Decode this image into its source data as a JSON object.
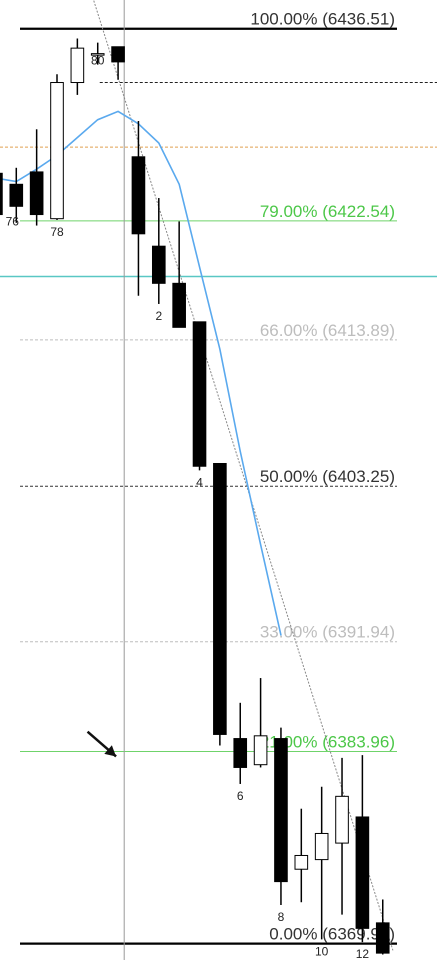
{
  "chart_data": {
    "type": "candlestick",
    "title": "",
    "xlabel": "",
    "ylabel": "",
    "ylim": [
      6368.8,
      6438.6
    ],
    "xlim": [
      -0.8,
      18.7
    ],
    "bar_labels": [
      {
        "x": 2,
        "text": "78"
      },
      {
        "x": 4,
        "text": "80"
      },
      {
        "x": 7,
        "text": "2"
      },
      {
        "x": 9,
        "text": "4"
      },
      {
        "x": 11,
        "text": "6"
      },
      {
        "x": 13,
        "text": "8"
      },
      {
        "x": 15,
        "text": "10"
      },
      {
        "x": 17,
        "text": "12"
      },
      {
        "x": 0,
        "text": "76"
      }
    ],
    "candles": [
      {
        "x": -1,
        "o": 6426.0,
        "h": 6427.4,
        "l": 6422.6,
        "c": 6423.0
      },
      {
        "x": 0,
        "o": 6425.2,
        "h": 6426.4,
        "l": 6422.4,
        "c": 6423.6
      },
      {
        "x": 1,
        "o": 6426.1,
        "h": 6429.2,
        "l": 6422.2,
        "c": 6423.0
      },
      {
        "x": 2,
        "o": 6422.7,
        "h": 6433.2,
        "l": 6422.6,
        "c": 6432.6
      },
      {
        "x": 3,
        "o": 6432.6,
        "h": 6435.8,
        "l": 6431.7,
        "c": 6435.1
      },
      {
        "x": 4,
        "o": 6434.6,
        "h": 6435.5,
        "l": 6433.9,
        "c": 6434.7
      },
      {
        "x": 5,
        "o": 6435.2,
        "h": 6435.2,
        "l": 6432.8,
        "c": 6434.1
      },
      {
        "x": 6,
        "o": 6427.2,
        "h": 6429.8,
        "l": 6417.1,
        "c": 6421.6
      },
      {
        "x": 7,
        "o": 6420.7,
        "h": 6424.2,
        "l": 6416.5,
        "c": 6418.0
      },
      {
        "x": 8,
        "o": 6418.0,
        "h": 6422.5,
        "l": 6414.8,
        "c": 6414.8
      },
      {
        "x": 9,
        "o": 6415.2,
        "h": 6415.2,
        "l": 6404.4,
        "c": 6404.7
      },
      {
        "x": 10,
        "o": 6404.9,
        "h": 6404.9,
        "l": 6384.4,
        "c": 6385.2
      },
      {
        "x": 11,
        "o": 6384.9,
        "h": 6387.5,
        "l": 6381.6,
        "c": 6382.8
      },
      {
        "x": 12,
        "o": 6383.0,
        "h": 6389.3,
        "l": 6382.8,
        "c": 6385.1
      },
      {
        "x": 13,
        "o": 6384.9,
        "h": 6385.7,
        "l": 6372.8,
        "c": 6374.5
      },
      {
        "x": 14,
        "o": 6375.4,
        "h": 6379.8,
        "l": 6373.0,
        "c": 6376.4
      },
      {
        "x": 15,
        "o": 6376.1,
        "h": 6381.4,
        "l": 6370.3,
        "c": 6378.0
      },
      {
        "x": 16,
        "o": 6377.3,
        "h": 6383.5,
        "l": 6372.1,
        "c": 6380.7
      },
      {
        "x": 17,
        "o": 6379.2,
        "h": 6383.7,
        "l": 6370.1,
        "c": 6371.1
      },
      {
        "x": 18,
        "o": 6371.5,
        "h": 6373.2,
        "l": 6369.2,
        "c": 6369.3
      }
    ],
    "moving_average": {
      "color": "#5aa9ee",
      "points": [
        [
          -0.8,
          6425.6
        ],
        [
          0,
          6425.4
        ],
        [
          1,
          6426.3
        ],
        [
          2,
          6427.3
        ],
        [
          3,
          6428.6
        ],
        [
          4,
          6429.9
        ],
        [
          5,
          6430.5
        ],
        [
          6,
          6429.6
        ],
        [
          7,
          6428.2
        ],
        [
          8,
          6425.2
        ],
        [
          9,
          6419.2
        ],
        [
          10,
          6413.2
        ],
        [
          11,
          6405.8
        ],
        [
          12,
          6399.0
        ],
        [
          13,
          6392.4
        ],
        [
          14,
          6387.1
        ],
        [
          15,
          6382.4
        ],
        [
          16,
          6378.2
        ],
        [
          17,
          6374.2
        ],
        [
          18,
          6370.6
        ]
      ]
    },
    "fib_levels": [
      {
        "pct": "100.00%",
        "price": "6436.51",
        "value": 6436.51,
        "color": "#000000",
        "label_color": "#333333",
        "line_style": "solid"
      },
      {
        "pct": "79.00%",
        "price": "6422.54",
        "value": 6422.54,
        "color": "#6fd36a",
        "label_color": "#4cc748",
        "line_style": "solid"
      },
      {
        "pct": "66.00%",
        "price": "6413.89",
        "value": 6413.89,
        "color": "#bdbdbd",
        "label_color": "#bdbdbd",
        "line_style": "dashed"
      },
      {
        "pct": "50.00%",
        "price": "6403.25",
        "value": 6403.25,
        "color": "#333333",
        "label_color": "#333333",
        "line_style": "dashed"
      },
      {
        "pct": "33.00%",
        "price": "6391.94",
        "value": 6391.94,
        "color": "#bdbdbd",
        "label_color": "#bdbdbd",
        "line_style": "dashed"
      },
      {
        "pct": "21.00%",
        "price": "6383.96",
        "value": 6383.96,
        "color": "#6fd36a",
        "label_color": "#4cc748",
        "line_style": "solid"
      },
      {
        "pct": "0.00%",
        "price": "6369.99",
        "value": 6369.99,
        "color": "#000000",
        "label_color": "#333333",
        "line_style": "solid"
      }
    ],
    "horizontal_lines": [
      {
        "value": 6432.6,
        "color": "#222222",
        "style": "dashed"
      },
      {
        "value": 6427.9,
        "color": "#e0a050",
        "style": "dashed"
      },
      {
        "value": 6418.5,
        "color": "#59c7c4",
        "style": "solid"
      }
    ],
    "vertical_line": {
      "x": 5.3,
      "color": "#999999"
    },
    "trendline": {
      "from": [
        5.2,
        6432.0
      ],
      "to": [
        18.5,
        6369.5
      ],
      "color": "#888888"
    },
    "arrow": {
      "from": [
        3.5,
        6385.4
      ],
      "to": [
        4.9,
        6383.6
      ],
      "color": "#111111"
    }
  }
}
